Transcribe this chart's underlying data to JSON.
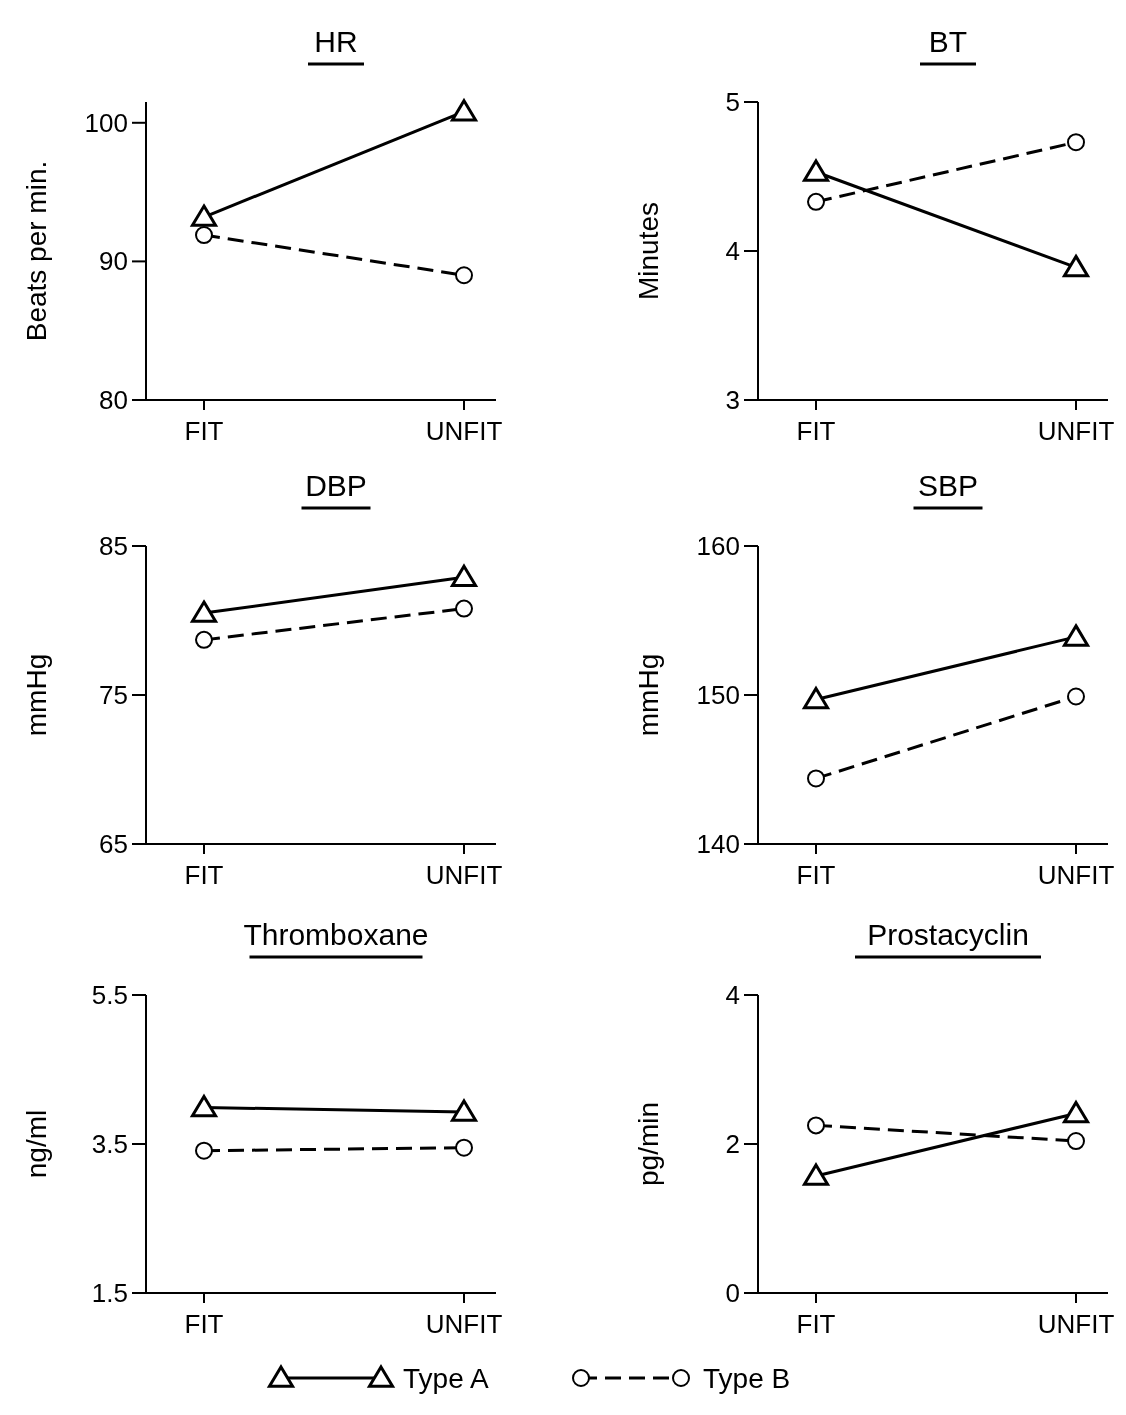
{
  "chart_data": [
    {
      "type": "line",
      "title": "HR",
      "ylabel": "Beats per min.",
      "categories": [
        "FIT",
        "UNFIT"
      ],
      "ylim": [
        80,
        101.5
      ],
      "yticks": [
        80,
        90,
        100
      ],
      "grid": false,
      "series": [
        {
          "color": "#000000",
          "marker": "triangle",
          "line_style": "solid",
          "values": [
            93.2,
            100.8
          ]
        },
        {
          "color": "#000000",
          "marker": "circle",
          "line_style": "dashed",
          "values": [
            91.9,
            89.0
          ]
        }
      ]
    },
    {
      "type": "line",
      "title": "BT",
      "ylabel": "Minutes",
      "categories": [
        "FIT",
        "UNFIT"
      ],
      "ylim": [
        3,
        5
      ],
      "yticks": [
        3,
        4,
        5
      ],
      "grid": false,
      "series": [
        {
          "color": "#000000",
          "marker": "triangle",
          "line_style": "solid",
          "values": [
            4.53,
            3.89
          ]
        },
        {
          "color": "#000000",
          "marker": "circle",
          "line_style": "dashed",
          "values": [
            4.33,
            4.73
          ]
        }
      ]
    },
    {
      "type": "line",
      "title": "DBP",
      "ylabel": "mmHg",
      "categories": [
        "FIT",
        "UNFIT"
      ],
      "ylim": [
        65,
        85
      ],
      "yticks": [
        65,
        75,
        85
      ],
      "grid": false,
      "series": [
        {
          "color": "#000000",
          "marker": "triangle",
          "line_style": "solid",
          "values": [
            80.5,
            82.9
          ]
        },
        {
          "color": "#000000",
          "marker": "circle",
          "line_style": "dashed",
          "values": [
            78.7,
            80.8
          ]
        }
      ]
    },
    {
      "type": "line",
      "title": "SBP",
      "ylabel": "mmHg",
      "categories": [
        "FIT",
        "UNFIT"
      ],
      "ylim": [
        140,
        160
      ],
      "yticks": [
        140,
        150,
        160
      ],
      "grid": false,
      "series": [
        {
          "color": "#000000",
          "marker": "triangle",
          "line_style": "solid",
          "values": [
            149.7,
            153.9
          ]
        },
        {
          "color": "#000000",
          "marker": "circle",
          "line_style": "dashed",
          "values": [
            144.4,
            149.9
          ]
        }
      ]
    },
    {
      "type": "line",
      "title": "Thromboxane",
      "ylabel": "ng/ml",
      "categories": [
        "FIT",
        "UNFIT"
      ],
      "ylim": [
        1.5,
        5.5
      ],
      "yticks": [
        1.5,
        3.5,
        5.5
      ],
      "grid": false,
      "series": [
        {
          "color": "#000000",
          "marker": "triangle",
          "line_style": "solid",
          "values": [
            3.99,
            3.93
          ]
        },
        {
          "color": "#000000",
          "marker": "circle",
          "line_style": "dashed",
          "values": [
            3.41,
            3.45
          ]
        }
      ]
    },
    {
      "type": "line",
      "title": "Prostacyclin",
      "ylabel": "pg/min",
      "categories": [
        "FIT",
        "UNFIT"
      ],
      "ylim": [
        0,
        4
      ],
      "yticks": [
        0,
        2,
        4
      ],
      "grid": false,
      "legend": "bottom",
      "series": [
        {
          "name": "Type A",
          "color": "#000000",
          "marker": "triangle",
          "line_style": "solid",
          "values": [
            1.57,
            2.41
          ]
        },
        {
          "name": "Type B",
          "color": "#000000",
          "marker": "circle",
          "line_style": "dashed",
          "values": [
            2.25,
            2.04
          ]
        }
      ]
    }
  ]
}
